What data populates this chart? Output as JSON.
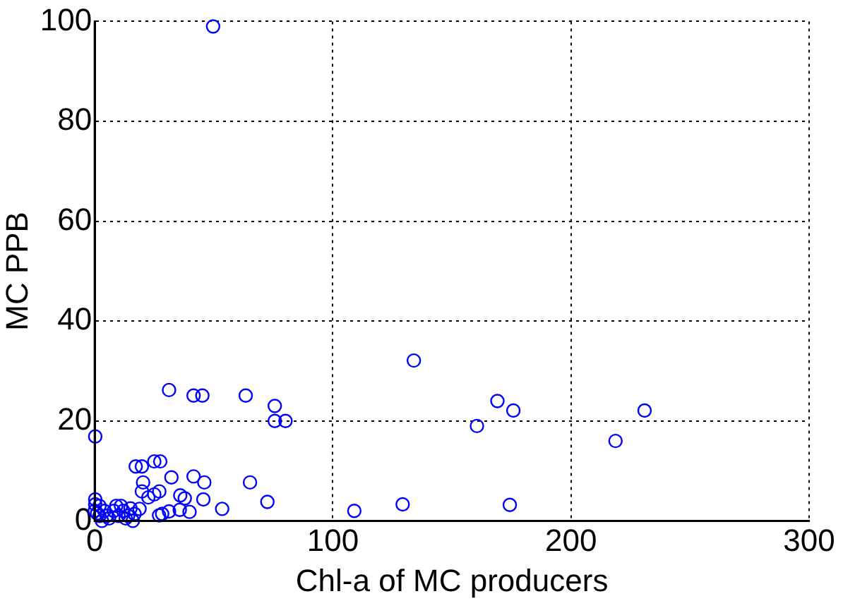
{
  "chart_data": {
    "type": "scatter",
    "xlabel": "Chl-a of MC producers",
    "ylabel": "MC PPB",
    "xlim": [
      0,
      300
    ],
    "xticks": [
      0,
      100,
      200,
      300
    ],
    "ylim": [
      0,
      100
    ],
    "yticks": [
      0,
      20,
      40,
      60,
      80,
      100
    ],
    "grid": true,
    "marker": "circle",
    "series": [
      {
        "color": "#0000ff",
        "x": [
          49.7,
          31.2,
          41.5,
          45.2,
          63.4,
          75.6,
          75.6,
          80.1,
          0.2,
          17.2,
          19.8,
          25,
          27.5,
          20.3,
          32.2,
          41.5,
          46,
          65.2,
          19.8,
          27.1,
          25,
          22.5,
          35.9,
          37.8,
          45.6,
          72.5,
          53.5,
          109,
          28.3,
          31.2,
          35.7,
          39.8,
          18.8,
          16.7,
          27,
          0.2,
          0.2,
          0,
          2,
          3,
          4,
          5,
          6,
          8,
          9,
          10,
          11,
          12,
          13,
          14,
          15,
          16,
          2,
          1,
          134,
          169.1,
          175.8,
          160.5,
          230.9,
          218.7,
          129.3,
          174.3
        ],
        "values": [
          99,
          26.2,
          25.1,
          25.1,
          25.1,
          23,
          20,
          20,
          16.9,
          10.9,
          10.9,
          11.9,
          11.9,
          7.7,
          8.7,
          8.9,
          7.7,
          7.7,
          5.9,
          5.9,
          5.3,
          4.7,
          5.1,
          4.5,
          4.3,
          3.8,
          2.4,
          2,
          1.4,
          1.9,
          2.2,
          1.8,
          2.4,
          1.4,
          1.1,
          4.3,
          3.3,
          2,
          1,
          0,
          2,
          1,
          0.5,
          2,
          3,
          1,
          3,
          2,
          0.5,
          1,
          2.5,
          0,
          3,
          1.5,
          32.1,
          24,
          22.1,
          19,
          22.1,
          16,
          3.3,
          3.2
        ]
      }
    ]
  }
}
